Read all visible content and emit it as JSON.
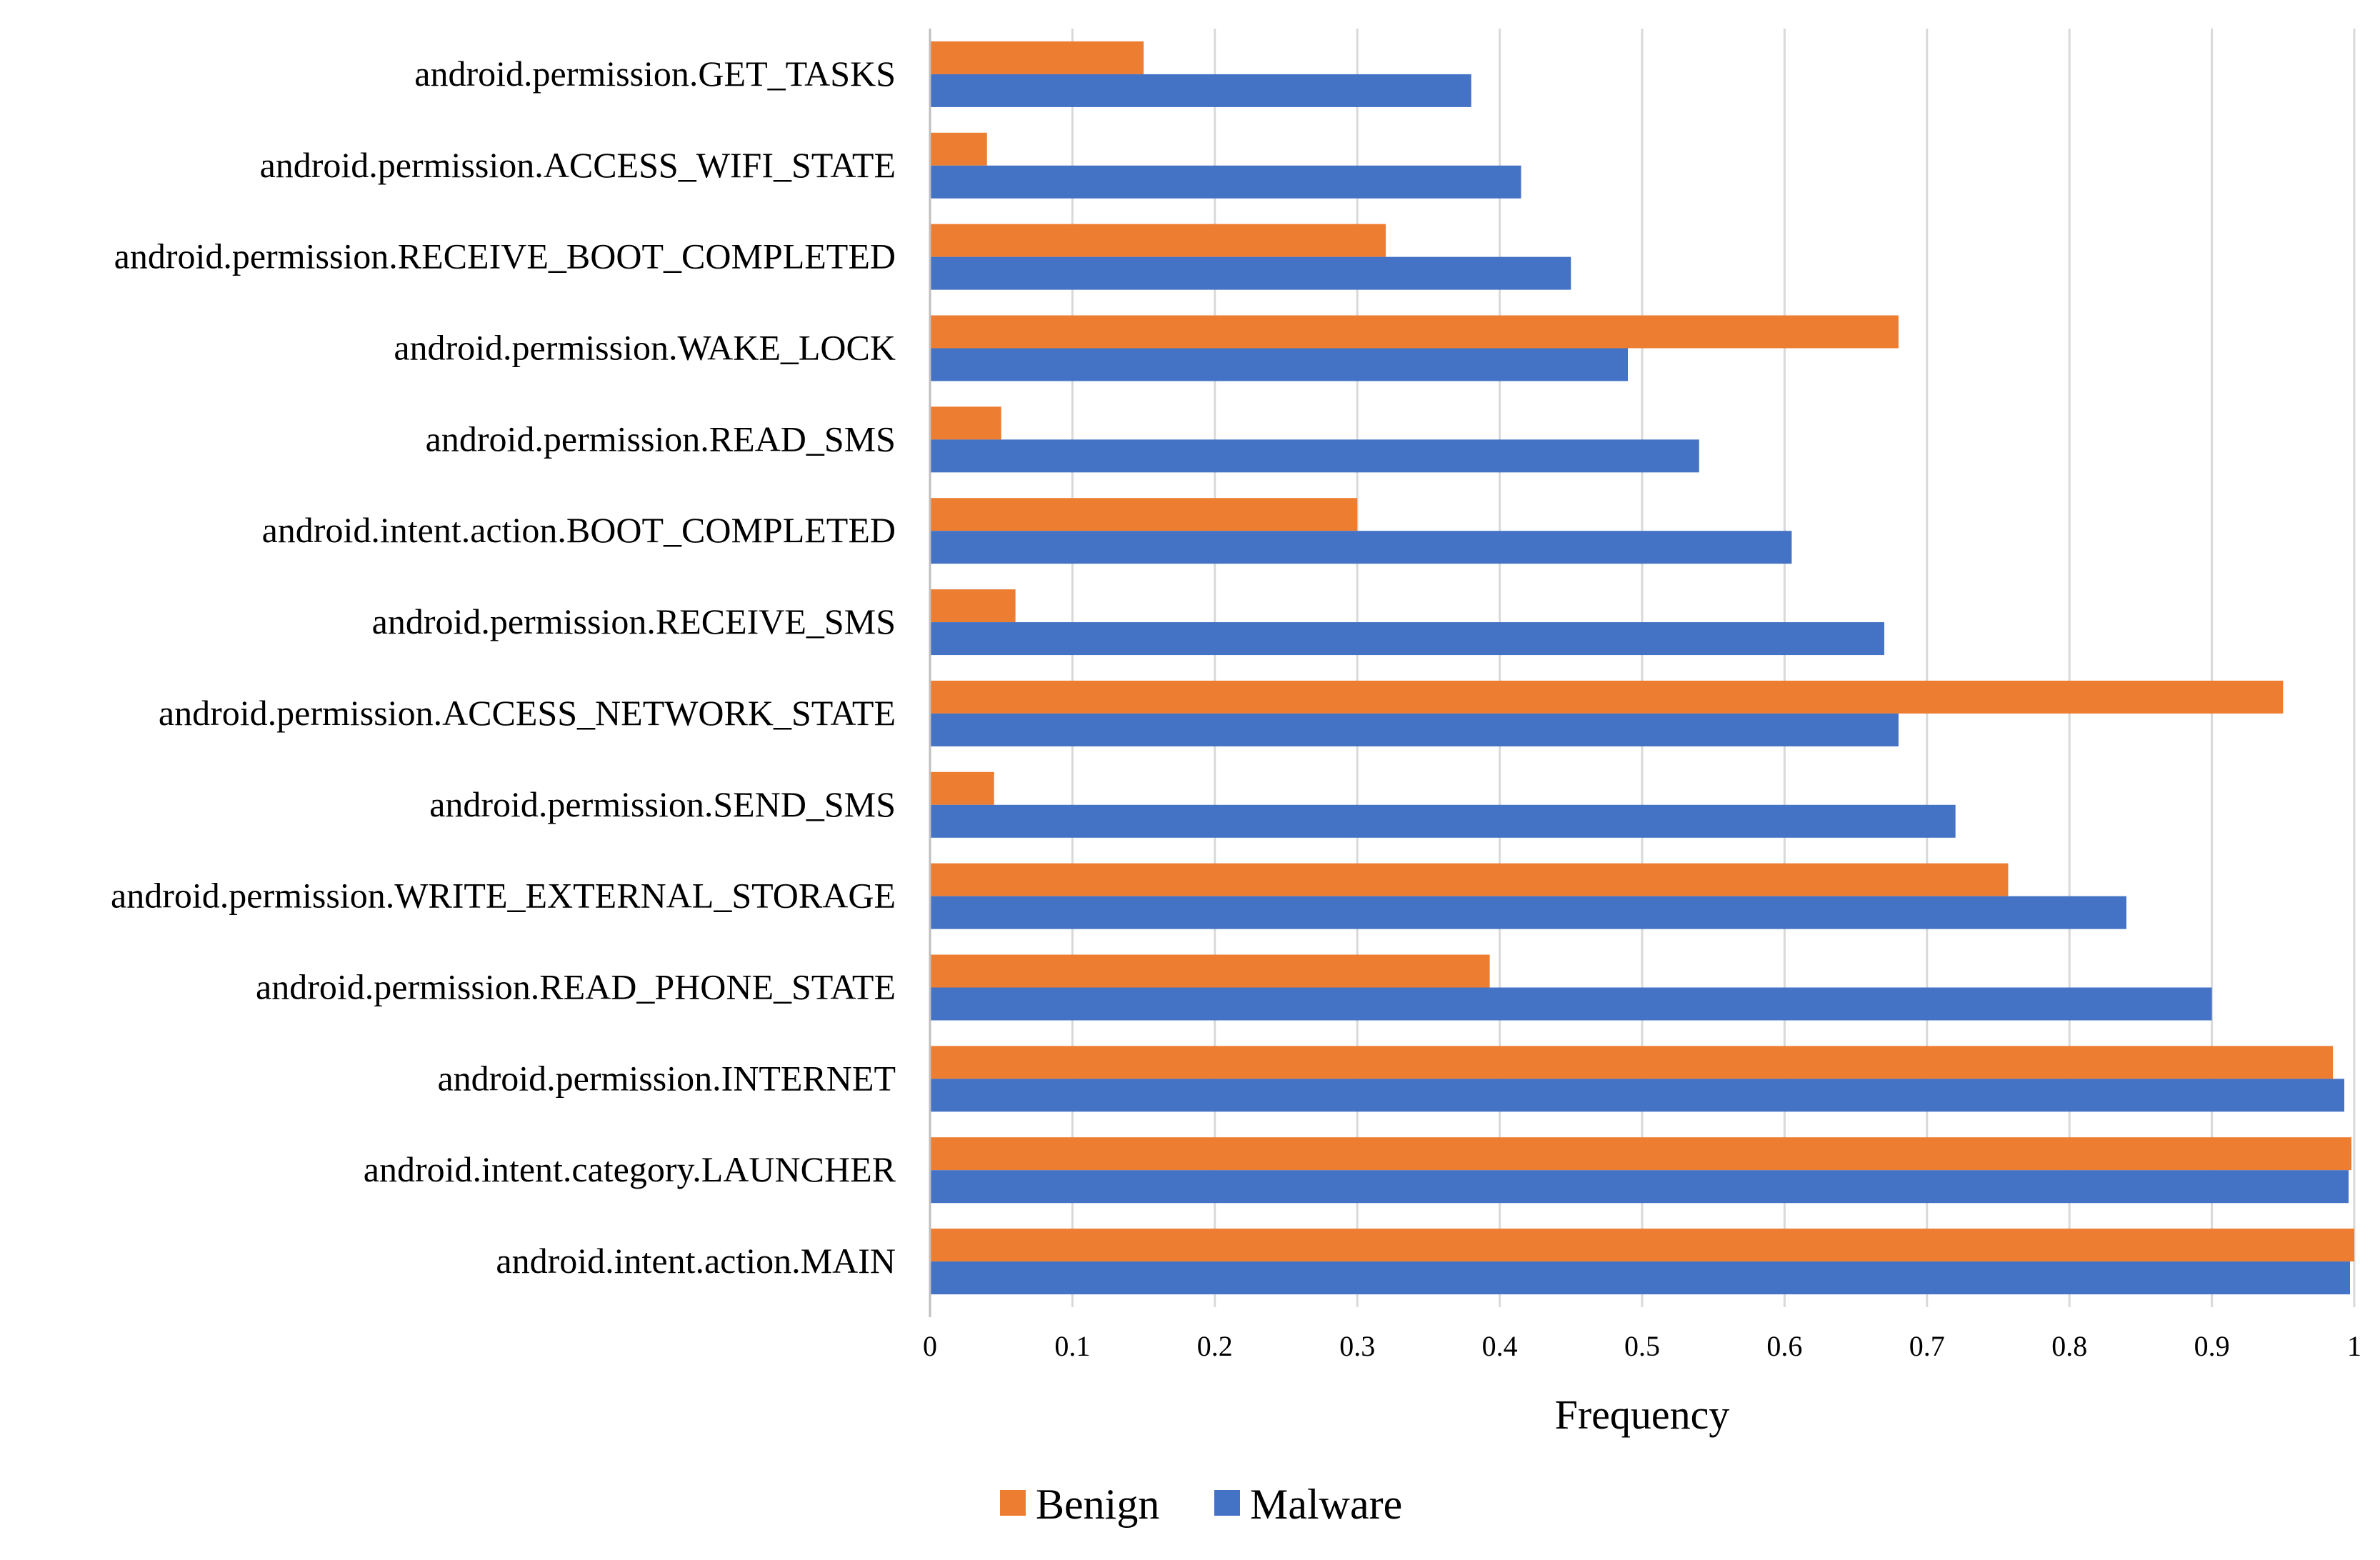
{
  "chart_data": {
    "type": "bar",
    "orientation": "horizontal",
    "xlabel": "Frequency",
    "ylabel": "",
    "xlim": [
      0,
      1
    ],
    "xticks": [
      "0",
      "0.1",
      "0.2",
      "0.3",
      "0.4",
      "0.5",
      "0.6",
      "0.7",
      "0.8",
      "0.9",
      "1"
    ],
    "grid": "vertical",
    "legend_placement": "bottom-center",
    "categories": [
      "android.permission.GET_TASKS",
      "android.permission.ACCESS_WIFI_STATE",
      "android.permission.RECEIVE_BOOT_COMPLETED",
      "android.permission.WAKE_LOCK",
      "android.permission.READ_SMS",
      "android.intent.action.BOOT_COMPLETED",
      "android.permission.RECEIVE_SMS",
      "android.permission.ACCESS_NETWORK_STATE",
      "android.permission.SEND_SMS",
      "android.permission.WRITE_EXTERNAL_STORAGE",
      "android.permission.READ_PHONE_STATE",
      "android.permission.INTERNET",
      "android.intent.category.LAUNCHER",
      "android.intent.action.MAIN"
    ],
    "series": [
      {
        "name": "Benign",
        "color": "#ED7D31",
        "values": [
          0.15,
          0.04,
          0.32,
          0.68,
          0.05,
          0.3,
          0.06,
          0.95,
          0.045,
          0.757,
          0.393,
          0.985,
          0.998,
          1.0
        ]
      },
      {
        "name": "Malware",
        "color": "#4472C4",
        "values": [
          0.38,
          0.415,
          0.45,
          0.49,
          0.54,
          0.605,
          0.67,
          0.68,
          0.72,
          0.84,
          0.9,
          0.993,
          0.996,
          0.997
        ]
      }
    ]
  }
}
